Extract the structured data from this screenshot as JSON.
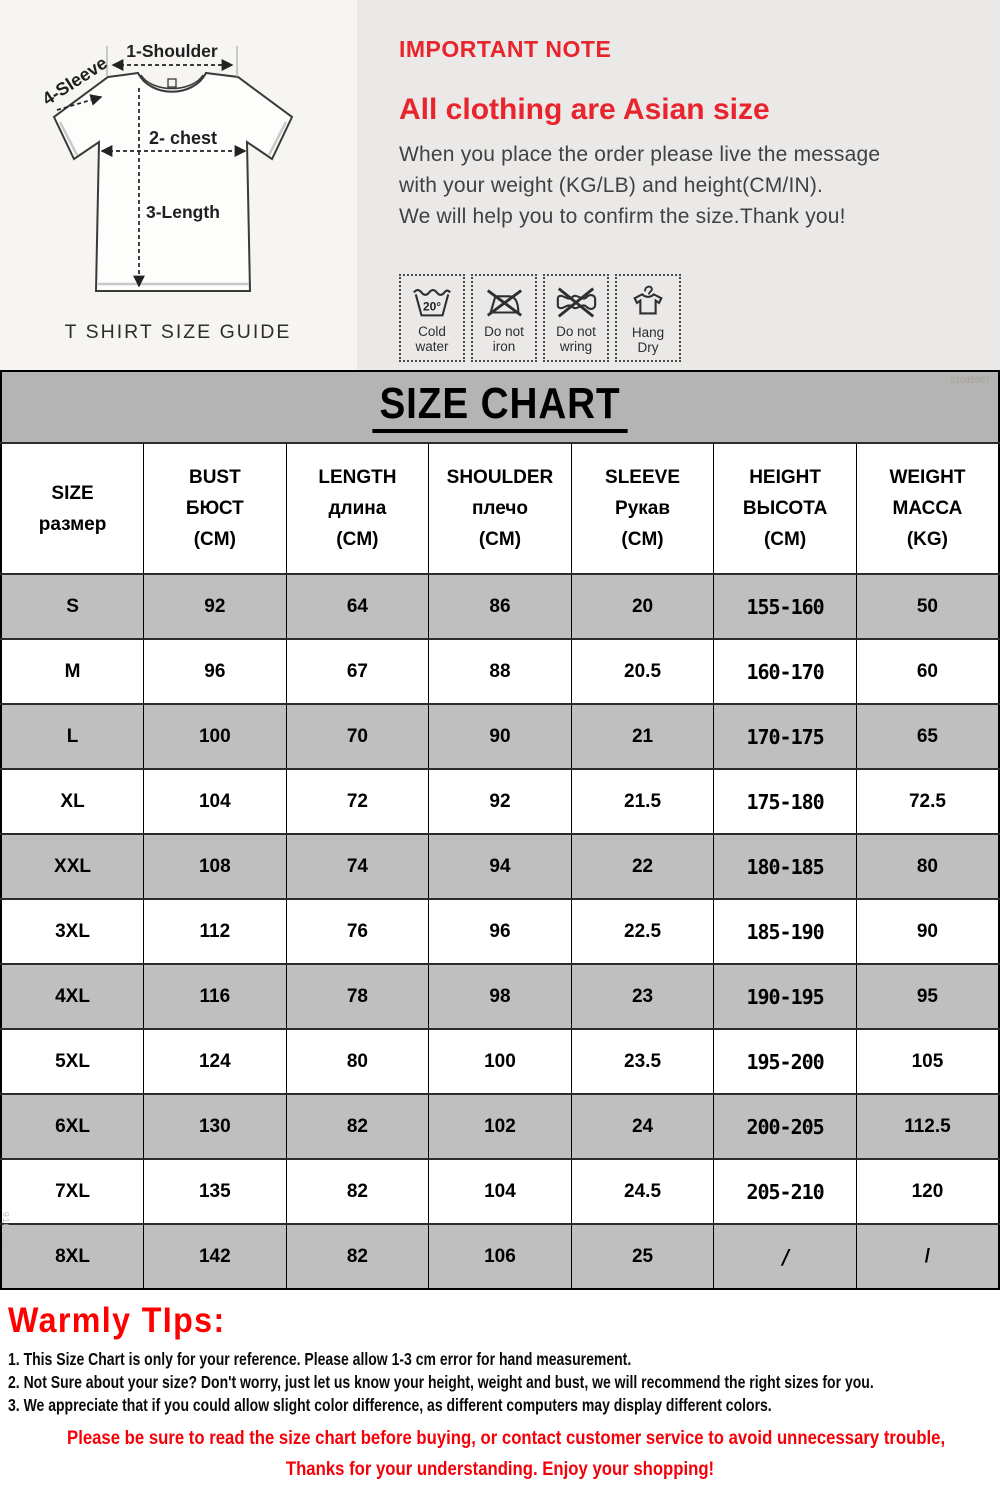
{
  "size_guide": {
    "labels": {
      "shoulder": "1-Shoulder",
      "sleeve": "4-Sleeve",
      "chest": "2- chest",
      "length": "3-Length"
    },
    "caption": "T SHIRT SIZE GUIDE"
  },
  "note": {
    "kicker": "IMPORTANT NOTE",
    "headline": "All clothing are Asian size",
    "body_lines": [
      "When you place the order please live the message",
      "with your weight (KG/LB) and height(CM/IN).",
      "We will help you to confirm the size.Thank you!"
    ],
    "care_icons": [
      {
        "icon": "cold-water-icon",
        "label": "Cold\nwater",
        "temp": "20°"
      },
      {
        "icon": "do-not-iron-icon",
        "label": "Do not\niron"
      },
      {
        "icon": "do-not-wring-icon",
        "label": "Do not\nwring"
      },
      {
        "icon": "hang-dry-icon",
        "label": "Hang\nDry"
      }
    ]
  },
  "banner": {
    "title": "SIZE CHART",
    "watermark": "91045907"
  },
  "size_chart": {
    "columns": [
      {
        "lines": [
          "SIZE",
          "размер"
        ]
      },
      {
        "lines": [
          "BUST",
          "БЮСТ",
          "(CM)"
        ]
      },
      {
        "lines": [
          "LENGTH",
          "длина",
          "(CM)"
        ]
      },
      {
        "lines": [
          "SHOULDER",
          "плечо",
          "(CM)"
        ]
      },
      {
        "lines": [
          "SLEEVE",
          "Рукав",
          "(CM)"
        ]
      },
      {
        "lines": [
          "HEIGHT",
          "ВЫСОТА",
          "(CM)"
        ]
      },
      {
        "lines": [
          "WEIGHT",
          "МАССА",
          "(KG)"
        ]
      }
    ],
    "rows": [
      [
        "S",
        "92",
        "64",
        "86",
        "20",
        "155-160",
        "50"
      ],
      [
        "M",
        "96",
        "67",
        "88",
        "20.5",
        "160-170",
        "60"
      ],
      [
        "L",
        "100",
        "70",
        "90",
        "21",
        "170-175",
        "65"
      ],
      [
        "XL",
        "104",
        "72",
        "92",
        "21.5",
        "175-180",
        "72.5"
      ],
      [
        "XXL",
        "108",
        "74",
        "94",
        "22",
        "180-185",
        "80"
      ],
      [
        "3XL",
        "112",
        "76",
        "96",
        "22.5",
        "185-190",
        "90"
      ],
      [
        "4XL",
        "116",
        "78",
        "98",
        "23",
        "190-195",
        "95"
      ],
      [
        "5XL",
        "124",
        "80",
        "100",
        "23.5",
        "195-200",
        "105"
      ],
      [
        "6XL",
        "130",
        "82",
        "102",
        "24",
        "200-205",
        "112.5"
      ],
      [
        "7XL",
        "135",
        "82",
        "104",
        "24.5",
        "205-210",
        "120"
      ],
      [
        "8XL",
        "142",
        "82",
        "106",
        "25",
        "/",
        "/"
      ]
    ]
  },
  "tips": {
    "heading": "Warmly TIps:",
    "items": [
      "1. This Size Chart is only for your reference. Please allow 1-3 cm error for hand measurement.",
      "2. Not Sure about your size? Don't worry, just let us know your height, weight and bust, we will recommend the right sizes for you.",
      "3. We appreciate that if you could allow slight color difference, as different computers may display different colors."
    ],
    "closing_lines": [
      "Please be sure to read the size chart before buying, or contact customer service to avoid unnecessary trouble,",
      "Thanks for your understanding. Enjoy your shopping!"
    ]
  },
  "side_watermark": "91045907"
}
